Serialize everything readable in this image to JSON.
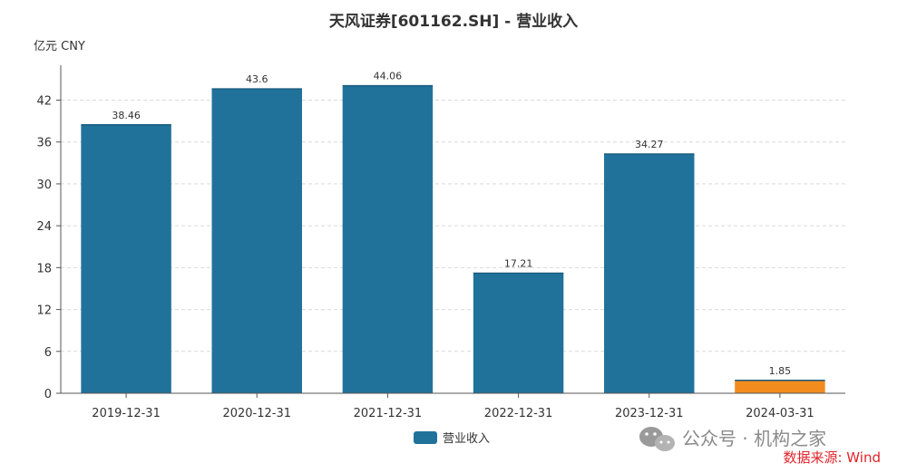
{
  "chart_data": {
    "type": "bar",
    "title": "天风证券[601162.SH] - 营业收入",
    "unit_label": "亿元 CNY",
    "categories": [
      "2019-12-31",
      "2020-12-31",
      "2021-12-31",
      "2022-12-31",
      "2023-12-31",
      "2024-03-31"
    ],
    "series": [
      {
        "name": "营业收入",
        "values": [
          38.46,
          43.6,
          44.06,
          17.21,
          34.27,
          1.85
        ],
        "value_labels": [
          "38.46",
          "43.6",
          "44.06",
          "17.21",
          "34.27",
          "1.85"
        ],
        "colors": [
          "#21729b",
          "#21729b",
          "#21729b",
          "#21729b",
          "#21729b",
          "#f28c1e"
        ]
      }
    ],
    "yticks": [
      0,
      6,
      12,
      18,
      24,
      30,
      36,
      42
    ],
    "ylim": [
      0,
      47
    ],
    "grid": true,
    "legend_position": "bottom-center",
    "legend_color": "#21729b"
  },
  "watermark": {
    "text": "公众号 · 机构之家",
    "icon": "wechat-icon"
  },
  "source": "数据来源: Wind"
}
